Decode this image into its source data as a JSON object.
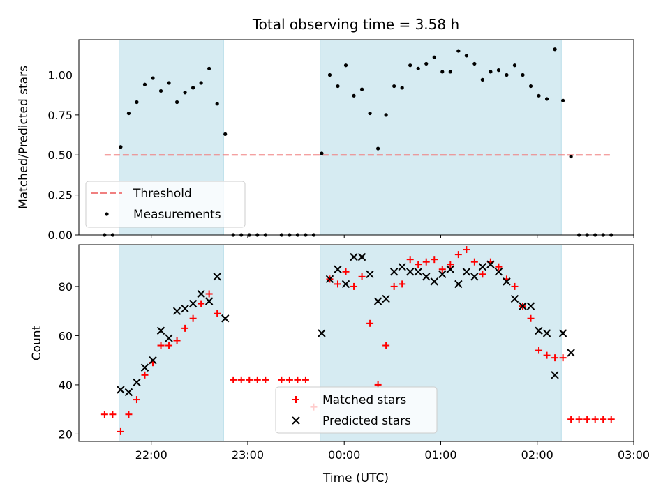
{
  "chart_data": [
    {
      "type": "scatter",
      "title": "Total observing time = 3.58 h",
      "xlabel": "",
      "ylabel": "Matched/Predicted stars",
      "xlim": [
        "21:15",
        "03:00"
      ],
      "ylim": [
        0.0,
        1.22
      ],
      "x_ticks": [
        "22:00",
        "23:00",
        "00:00",
        "01:00",
        "02:00",
        "03:00"
      ],
      "y_ticks": [
        "0.00",
        "0.25",
        "0.50",
        "0.75",
        "1.00"
      ],
      "y_tick_values": [
        0.0,
        0.25,
        0.5,
        0.75,
        1.0
      ],
      "legend": {
        "placement": "lower-left",
        "entries": [
          "Threshold",
          "Measurements"
        ]
      },
      "shaded_intervals": [
        [
          "21:40",
          "22:45"
        ],
        [
          "23:45",
          "02:15"
        ]
      ],
      "threshold": {
        "name": "Threshold",
        "value": 0.5,
        "x_range": [
          "21:31",
          "02:46"
        ],
        "color": "#f08080"
      },
      "series": [
        {
          "name": "Measurements",
          "color": "#000000",
          "points": [
            [
              "21:31",
              0.0
            ],
            [
              "21:36",
              0.0
            ],
            [
              "21:41",
              0.55
            ],
            [
              "21:46",
              0.76
            ],
            [
              "21:51",
              0.83
            ],
            [
              "21:56",
              0.94
            ],
            [
              "22:01",
              0.98
            ],
            [
              "22:06",
              0.9
            ],
            [
              "22:11",
              0.95
            ],
            [
              "22:16",
              0.83
            ],
            [
              "22:21",
              0.89
            ],
            [
              "22:26",
              0.92
            ],
            [
              "22:31",
              0.95
            ],
            [
              "22:36",
              1.04
            ],
            [
              "22:41",
              0.82
            ],
            [
              "22:46",
              0.63
            ],
            [
              "22:51",
              0.0
            ],
            [
              "22:56",
              0.0
            ],
            [
              "23:01",
              0.0
            ],
            [
              "23:06",
              0.0
            ],
            [
              "23:11",
              0.0
            ],
            [
              "23:21",
              0.0
            ],
            [
              "23:26",
              0.0
            ],
            [
              "23:31",
              0.0
            ],
            [
              "23:36",
              0.0
            ],
            [
              "23:41",
              0.0
            ],
            [
              "23:46",
              0.51
            ],
            [
              "23:51",
              1.0
            ],
            [
              "23:56",
              0.93
            ],
            [
              "00:01",
              1.06
            ],
            [
              "00:06",
              0.87
            ],
            [
              "00:11",
              0.91
            ],
            [
              "00:16",
              0.76
            ],
            [
              "00:21",
              0.54
            ],
            [
              "00:26",
              0.75
            ],
            [
              "00:31",
              0.93
            ],
            [
              "00:36",
              0.92
            ],
            [
              "00:41",
              1.06
            ],
            [
              "00:46",
              1.04
            ],
            [
              "00:51",
              1.07
            ],
            [
              "00:56",
              1.11
            ],
            [
              "01:01",
              1.02
            ],
            [
              "01:06",
              1.02
            ],
            [
              "01:11",
              1.15
            ],
            [
              "01:16",
              1.12
            ],
            [
              "01:21",
              1.07
            ],
            [
              "01:26",
              0.97
            ],
            [
              "01:31",
              1.02
            ],
            [
              "01:36",
              1.03
            ],
            [
              "01:41",
              1.0
            ],
            [
              "01:46",
              1.06
            ],
            [
              "01:51",
              1.0
            ],
            [
              "01:56",
              0.93
            ],
            [
              "02:01",
              0.87
            ],
            [
              "02:06",
              0.85
            ],
            [
              "02:11",
              1.16
            ],
            [
              "02:16",
              0.84
            ],
            [
              "02:21",
              0.49
            ],
            [
              "02:26",
              0.0
            ],
            [
              "02:31",
              0.0
            ],
            [
              "02:36",
              0.0
            ],
            [
              "02:41",
              0.0
            ],
            [
              "02:46",
              0.0
            ]
          ]
        }
      ]
    },
    {
      "type": "scatter",
      "title": "",
      "xlabel": "Time (UTC)",
      "ylabel": "Count",
      "xlim": [
        "21:15",
        "03:00"
      ],
      "ylim": [
        17,
        97
      ],
      "x_ticks": [
        "22:00",
        "23:00",
        "00:00",
        "01:00",
        "02:00",
        "03:00"
      ],
      "y_ticks": [
        "20",
        "40",
        "60",
        "80"
      ],
      "y_tick_values": [
        20,
        40,
        60,
        80
      ],
      "legend": {
        "placement": "lower-center",
        "entries": [
          "Matched stars",
          "Predicted stars"
        ]
      },
      "shaded_intervals": [
        [
          "21:40",
          "22:45"
        ],
        [
          "23:45",
          "02:15"
        ]
      ],
      "series": [
        {
          "name": "Matched stars",
          "marker": "plus",
          "color": "#ff0000",
          "points": [
            [
              "21:31",
              28
            ],
            [
              "21:36",
              28
            ],
            [
              "21:41",
              21
            ],
            [
              "21:46",
              28
            ],
            [
              "21:51",
              34
            ],
            [
              "21:56",
              44
            ],
            [
              "22:01",
              49
            ],
            [
              "22:06",
              56
            ],
            [
              "22:11",
              56
            ],
            [
              "22:16",
              58
            ],
            [
              "22:21",
              63
            ],
            [
              "22:26",
              67
            ],
            [
              "22:31",
              73
            ],
            [
              "22:36",
              77
            ],
            [
              "22:41",
              69
            ],
            [
              "22:51",
              42
            ],
            [
              "22:56",
              42
            ],
            [
              "23:01",
              42
            ],
            [
              "23:06",
              42
            ],
            [
              "23:11",
              42
            ],
            [
              "23:21",
              42
            ],
            [
              "23:26",
              42
            ],
            [
              "23:31",
              42
            ],
            [
              "23:36",
              42
            ],
            [
              "23:41",
              31
            ],
            [
              "23:51",
              83
            ],
            [
              "23:56",
              81
            ],
            [
              "00:01",
              86
            ],
            [
              "00:06",
              80
            ],
            [
              "00:11",
              84
            ],
            [
              "00:16",
              65
            ],
            [
              "00:21",
              40
            ],
            [
              "00:26",
              56
            ],
            [
              "00:31",
              80
            ],
            [
              "00:36",
              81
            ],
            [
              "00:41",
              91
            ],
            [
              "00:46",
              89
            ],
            [
              "00:51",
              90
            ],
            [
              "00:56",
              91
            ],
            [
              "01:01",
              87
            ],
            [
              "01:06",
              89
            ],
            [
              "01:11",
              93
            ],
            [
              "01:16",
              95
            ],
            [
              "01:21",
              90
            ],
            [
              "01:26",
              85
            ],
            [
              "01:31",
              90
            ],
            [
              "01:36",
              88
            ],
            [
              "01:41",
              83
            ],
            [
              "01:46",
              80
            ],
            [
              "01:51",
              72
            ],
            [
              "01:56",
              67
            ],
            [
              "02:01",
              54
            ],
            [
              "02:06",
              52
            ],
            [
              "02:11",
              51
            ],
            [
              "02:16",
              51
            ],
            [
              "02:21",
              26
            ],
            [
              "02:26",
              26
            ],
            [
              "02:31",
              26
            ],
            [
              "02:36",
              26
            ],
            [
              "02:41",
              26
            ],
            [
              "02:46",
              26
            ]
          ]
        },
        {
          "name": "Predicted stars",
          "marker": "x",
          "color": "#000000",
          "points": [
            [
              "21:41",
              38
            ],
            [
              "21:46",
              37
            ],
            [
              "21:51",
              41
            ],
            [
              "21:56",
              47
            ],
            [
              "22:01",
              50
            ],
            [
              "22:06",
              62
            ],
            [
              "22:11",
              59
            ],
            [
              "22:16",
              70
            ],
            [
              "22:21",
              71
            ],
            [
              "22:26",
              73
            ],
            [
              "22:31",
              77
            ],
            [
              "22:36",
              74
            ],
            [
              "22:41",
              84
            ],
            [
              "22:46",
              67
            ],
            [
              "23:46",
              61
            ],
            [
              "23:51",
              83
            ],
            [
              "23:56",
              87
            ],
            [
              "00:01",
              81
            ],
            [
              "00:06",
              92
            ],
            [
              "00:11",
              92
            ],
            [
              "00:16",
              85
            ],
            [
              "00:21",
              74
            ],
            [
              "00:26",
              75
            ],
            [
              "00:31",
              86
            ],
            [
              "00:36",
              88
            ],
            [
              "00:41",
              86
            ],
            [
              "00:46",
              86
            ],
            [
              "00:51",
              84
            ],
            [
              "00:56",
              82
            ],
            [
              "01:01",
              85
            ],
            [
              "01:06",
              87
            ],
            [
              "01:11",
              81
            ],
            [
              "01:16",
              86
            ],
            [
              "01:21",
              84
            ],
            [
              "01:26",
              88
            ],
            [
              "01:31",
              89
            ],
            [
              "01:36",
              86
            ],
            [
              "01:41",
              82
            ],
            [
              "01:46",
              75
            ],
            [
              "01:51",
              72
            ],
            [
              "01:56",
              72
            ],
            [
              "02:01",
              62
            ],
            [
              "02:06",
              61
            ],
            [
              "02:11",
              44
            ],
            [
              "02:16",
              61
            ],
            [
              "02:21",
              53
            ]
          ]
        }
      ]
    }
  ]
}
